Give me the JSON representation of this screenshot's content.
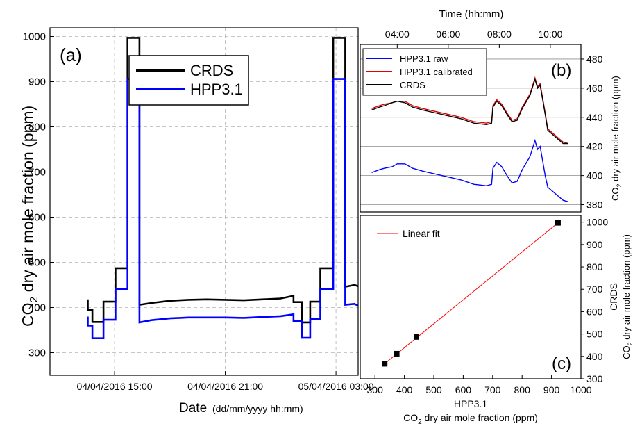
{
  "chart_data": [
    {
      "panel": "(a)",
      "type": "line",
      "xlabel": "Date",
      "xlabel_units": "(dd/mm/yyyy  hh:mm)",
      "ylabel": "CO2 dry air mole fraction (ppm)",
      "ylabel_parts": {
        "pre": "CO",
        "sub": "2",
        "post": " dry air mole fraction (ppm)"
      },
      "xticks": [
        "04/04/2016 15:00",
        "04/04/2016 21:00",
        "05/04/2016 03:00"
      ],
      "xticks_hours": [
        15,
        21,
        27
      ],
      "xlim_hours": [
        11.5,
        28.2
      ],
      "ylim": [
        250,
        1010
      ],
      "yticks": [
        300,
        400,
        500,
        600,
        700,
        800,
        900,
        1000
      ],
      "grid": true,
      "legend": {
        "position": "top-center",
        "entries": [
          "CRDS",
          "HPP3.1"
        ]
      },
      "series": [
        {
          "name": "CRDS",
          "color": "#000000",
          "x": [
            13.55,
            13.55,
            13.8,
            13.8,
            14.4,
            14.4,
            15.05,
            15.05,
            15.7,
            15.7,
            16.35,
            16.35,
            17,
            18,
            19,
            20,
            21,
            22,
            23,
            24,
            24.7,
            24.7,
            25.15,
            25.15,
            25.6,
            25.6,
            26.15,
            26.15,
            26.85,
            26.85,
            27.5,
            27.5,
            28.0,
            28.2
          ],
          "y": [
            418,
            395,
            395,
            368,
            368,
            413,
            413,
            487,
            487,
            997,
            997,
            406,
            410,
            415,
            417,
            418,
            417,
            416,
            418,
            420,
            426,
            412,
            412,
            367,
            367,
            413,
            413,
            487,
            487,
            997,
            997,
            446,
            450,
            447
          ]
        },
        {
          "name": "HPP3.1",
          "color": "#0000ff",
          "x": [
            13.55,
            13.55,
            13.8,
            13.8,
            14.4,
            14.4,
            15.05,
            15.05,
            15.7,
            15.7,
            16.35,
            16.35,
            17,
            18,
            19,
            20,
            21,
            22,
            23,
            24,
            24.7,
            24.7,
            25.15,
            25.15,
            25.6,
            25.6,
            26.15,
            26.15,
            26.85,
            26.85,
            27.5,
            27.5,
            28.0,
            28.2
          ],
          "y": [
            380,
            360,
            360,
            332,
            332,
            373,
            373,
            441,
            441,
            906,
            906,
            367,
            372,
            376,
            378,
            378,
            378,
            377,
            379,
            381,
            385,
            370,
            370,
            333,
            333,
            375,
            375,
            441,
            441,
            906,
            906,
            406,
            408,
            404
          ]
        }
      ]
    },
    {
      "panel": "(b)",
      "type": "line",
      "xlabel": "Time (hh:mm)",
      "xticks": [
        "04:00",
        "06:00",
        "08:00",
        "10:00"
      ],
      "xticks_hours": [
        4,
        6,
        8,
        10
      ],
      "xlim_hours": [
        2.55,
        11.2
      ],
      "ylabel": "CO2 dry air mole fraction (ppm)",
      "ylabel_parts": {
        "pre": "CO",
        "sub": "2",
        "post": " dry air mole fraction (ppm)"
      },
      "ylim": [
        375,
        490
      ],
      "yticks": [
        380,
        400,
        420,
        440,
        460,
        480
      ],
      "grid": true,
      "legend": {
        "position": "top-left",
        "entries": [
          "HPP3.1 raw",
          "HPP3.1 calibrated",
          "CRDS"
        ]
      },
      "series": [
        {
          "name": "HPP3.1 raw",
          "color": "#0000ff",
          "x": [
            3.0,
            3.3,
            3.5,
            3.8,
            4.0,
            4.3,
            4.6,
            5.0,
            5.5,
            6.0,
            6.5,
            7.0,
            7.5,
            7.7,
            7.75,
            7.9,
            8.1,
            8.3,
            8.5,
            8.7,
            8.8,
            8.9,
            9.2,
            9.4,
            9.5,
            9.6,
            9.7,
            9.8,
            9.9,
            10.1,
            10.3,
            10.5,
            10.7
          ],
          "y": [
            402,
            404,
            405,
            406,
            408,
            408,
            405,
            403,
            401,
            399,
            397,
            394,
            393,
            394,
            405,
            409,
            406,
            400,
            395,
            396,
            400,
            404,
            413,
            424,
            418,
            420,
            410,
            400,
            392,
            389,
            386,
            383,
            382
          ]
        },
        {
          "name": "HPP3.1 calibrated",
          "color": "#e00000",
          "x": [
            3.0,
            3.3,
            3.5,
            3.8,
            4.0,
            4.3,
            4.6,
            5.0,
            5.5,
            6.0,
            6.5,
            7.0,
            7.5,
            7.7,
            7.75,
            7.9,
            8.1,
            8.3,
            8.5,
            8.7,
            8.8,
            8.9,
            9.2,
            9.4,
            9.5,
            9.6,
            9.7,
            9.8,
            9.9,
            10.1,
            10.3,
            10.5,
            10.7
          ],
          "y": [
            446,
            448,
            449,
            450,
            451,
            451,
            448,
            446,
            444,
            442,
            440,
            437,
            436,
            437,
            448,
            452,
            449,
            443,
            438,
            439,
            443,
            447,
            456,
            467,
            461,
            463,
            453,
            443,
            432,
            429,
            426,
            423,
            422
          ]
        },
        {
          "name": "CRDS",
          "color": "#000000",
          "x": [
            3.0,
            3.3,
            3.5,
            3.8,
            4.0,
            4.3,
            4.6,
            5.0,
            5.5,
            6.0,
            6.5,
            7.0,
            7.5,
            7.7,
            7.75,
            7.9,
            8.1,
            8.3,
            8.5,
            8.7,
            8.8,
            8.9,
            9.2,
            9.4,
            9.5,
            9.6,
            9.7,
            9.8,
            9.9,
            10.1,
            10.3,
            10.5,
            10.7
          ],
          "y": [
            445,
            447,
            448,
            450,
            451,
            450,
            447,
            445,
            443,
            441,
            439,
            436,
            435,
            436,
            447,
            451,
            448,
            442,
            437,
            438,
            442,
            446,
            455,
            466,
            460,
            462,
            452,
            442,
            431,
            428,
            425,
            422,
            422
          ]
        }
      ]
    },
    {
      "panel": "(c)",
      "type": "scatter",
      "xlabel": "HPP3.1",
      "xlabel_sub": "CO2 dry air mole fraction (ppm)",
      "xlabel_parts": {
        "pre": "CO",
        "sub": "2",
        "post": " dry air mole fraction (ppm)"
      },
      "ylabel": "CRDS",
      "ylabel_sub": "CO2 dry air mole fraction (ppm)",
      "ylabel_parts": {
        "pre": "CO",
        "sub": "2",
        "post": " dry air mole fraction (ppm)"
      },
      "xlim": [
        250,
        1000
      ],
      "ylim": [
        300,
        1030
      ],
      "xticks": [
        300,
        400,
        500,
        600,
        700,
        800,
        900,
        1000
      ],
      "yticks": [
        300,
        400,
        500,
        600,
        700,
        800,
        900,
        1000
      ],
      "grid": false,
      "legend": {
        "position": "top-left",
        "entries": [
          "Linear fit"
        ]
      },
      "points": {
        "x": [
          333,
          374,
          441,
          922
        ],
        "y": [
          367,
          412,
          487,
          997
        ]
      },
      "fit": {
        "name": "Linear fit",
        "color": "#ff0000",
        "x": [
          330,
          922
        ],
        "y": [
          364,
          997
        ]
      }
    }
  ]
}
